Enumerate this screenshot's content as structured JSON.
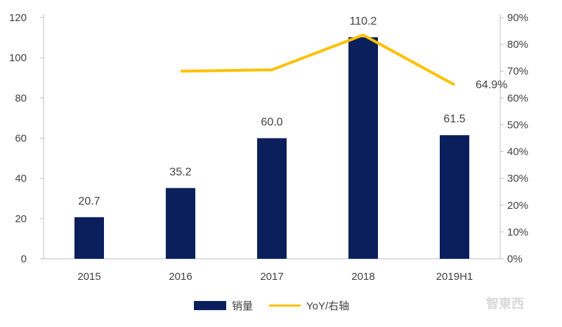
{
  "chart_data": {
    "type": "bar",
    "categories": [
      "2015",
      "2016",
      "2017",
      "2018",
      "2019H1"
    ],
    "series": [
      {
        "name": "销量",
        "type": "bar",
        "axis": "left",
        "color": "#0b1f5c",
        "values": [
          20.7,
          35.2,
          60.0,
          110.2,
          61.5
        ],
        "data_labels": [
          "20.7",
          "35.2",
          "60.0",
          "110.2",
          "61.5"
        ]
      },
      {
        "name": "YoY/右轴",
        "type": "line",
        "axis": "right",
        "color": "#ffc000",
        "values": [
          null,
          0.7,
          0.705,
          0.835,
          0.649
        ],
        "data_labels": [
          null,
          null,
          null,
          null,
          "64.9%"
        ]
      }
    ],
    "y_left": {
      "ylim": [
        0,
        120
      ],
      "ticks": [
        0,
        20,
        40,
        60,
        80,
        100,
        120
      ],
      "tick_labels": [
        "0",
        "20",
        "40",
        "60",
        "80",
        "100",
        "120"
      ]
    },
    "y_right": {
      "ylim": [
        0,
        0.9
      ],
      "ticks": [
        0,
        0.1,
        0.2,
        0.3,
        0.4,
        0.5,
        0.6,
        0.7,
        0.8,
        0.9
      ],
      "tick_labels": [
        "0%",
        "10%",
        "20%",
        "30%",
        "40%",
        "50%",
        "60%",
        "70%",
        "80%",
        "90%"
      ]
    },
    "legend": {
      "placement": "bottom-center",
      "entries": [
        "销量",
        "YoY/右轴"
      ]
    },
    "grid": false,
    "watermark": "智東西"
  }
}
